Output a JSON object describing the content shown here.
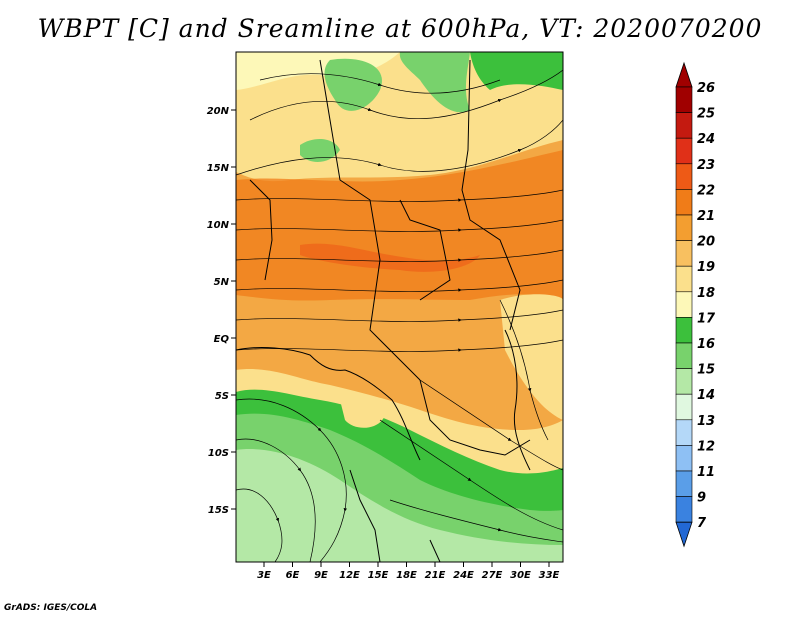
{
  "title": "WBPT [C] and Sreamline at 600hPa, VT: 2020070200",
  "credit": "GrADS: IGES/COLA",
  "map": {
    "lat_labels": [
      "20N",
      "15N",
      "10N",
      "5N",
      "EQ",
      "5S",
      "10S",
      "15S"
    ],
    "lon_labels": [
      "3E",
      "6E",
      "9E",
      "12E",
      "15E",
      "18E",
      "21E",
      "24E",
      "27E",
      "30E",
      "33E"
    ]
  },
  "colorbar": {
    "labels": [
      "26",
      "25",
      "24",
      "23",
      "22",
      "21",
      "20",
      "19",
      "18",
      "17",
      "16",
      "15",
      "14",
      "13",
      "12",
      "11",
      "9",
      "7"
    ],
    "colors": [
      "#a00000",
      "#c41a10",
      "#e03018",
      "#ee5a16",
      "#f07c18",
      "#f39e30",
      "#f8c060",
      "#fbe08c",
      "#fdf8b8",
      "#3cc03c",
      "#78d26c",
      "#b4e8a6",
      "#e0f8e0",
      "#b4d8f8",
      "#8ec0f4",
      "#5a9ee8",
      "#3a82e0",
      "#2268d4"
    ],
    "top_cap_color": "#a00000",
    "bottom_cap_color": "#2268d4"
  }
}
